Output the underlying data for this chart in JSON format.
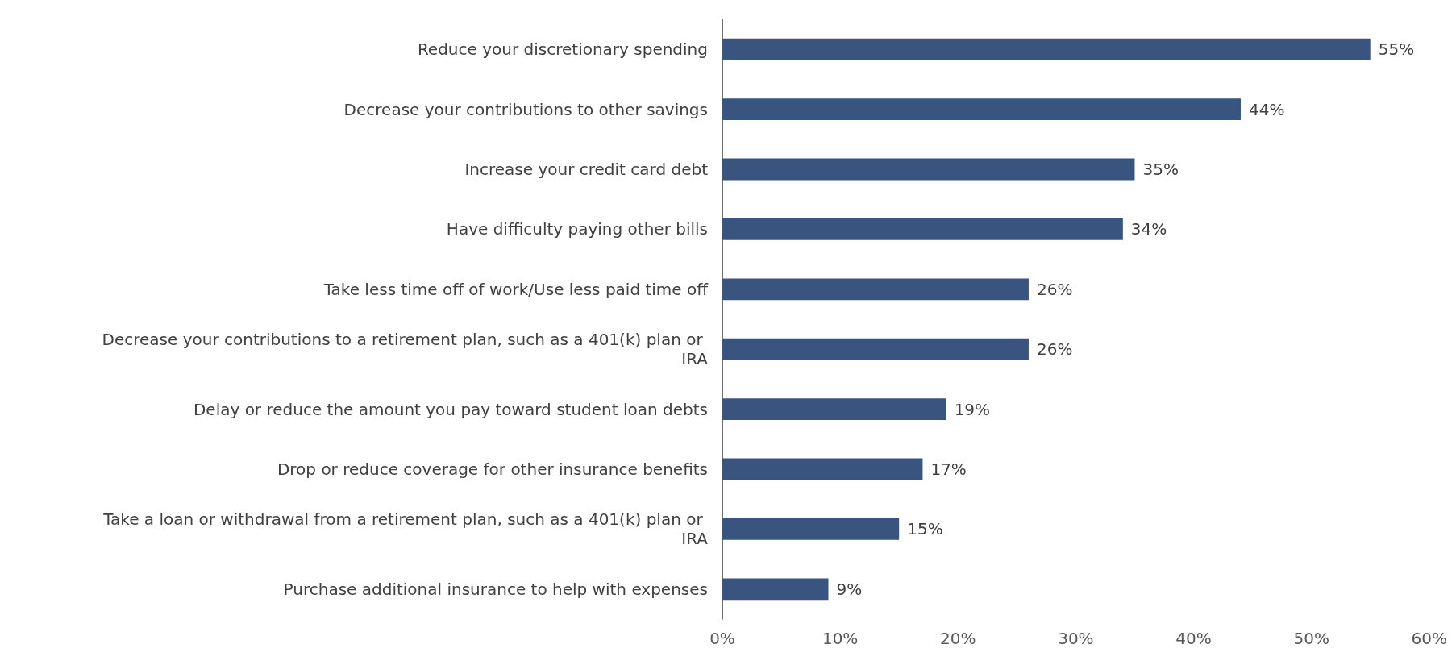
{
  "chart_data": {
    "type": "bar",
    "orientation": "horizontal",
    "categories": [
      "Reduce your discretionary spending",
      "Decrease your contributions to other savings",
      "Increase your credit card debt",
      "Have difficulty paying other bills",
      "Take less time off of work/Use less paid time off",
      "Decrease your contributions to a retirement plan, such as a 401(k) plan or IRA",
      "Delay or reduce the amount you pay toward student loan debts",
      "Drop or reduce coverage for other insurance benefits",
      "Take a loan or withdrawal from a retirement plan, such as a 401(k) plan or IRA",
      "Purchase additional insurance to help with expenses"
    ],
    "values": [
      55,
      44,
      35,
      34,
      26,
      26,
      19,
      17,
      15,
      9
    ],
    "value_labels": [
      "55%",
      "44%",
      "35%",
      "34%",
      "26%",
      "26%",
      "19%",
      "17%",
      "15%",
      "9%"
    ],
    "color": "#3a5480",
    "xlim": [
      0,
      60
    ],
    "xticks": [
      {
        "value": 0,
        "label": "0%"
      },
      {
        "value": 10,
        "label": "10%"
      },
      {
        "value": 20,
        "label": "20%"
      },
      {
        "value": 30,
        "label": "30%"
      },
      {
        "value": 40,
        "label": "40%"
      },
      {
        "value": 50,
        "label": "50%"
      },
      {
        "value": 60,
        "label": "60%"
      }
    ],
    "grid": false
  }
}
